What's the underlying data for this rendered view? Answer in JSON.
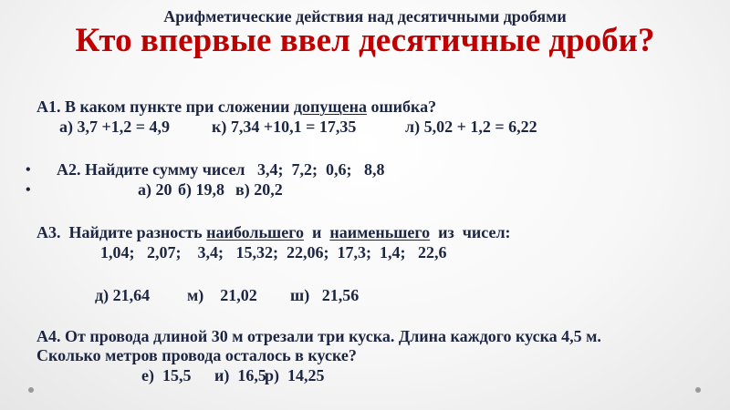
{
  "subtitle": "Арифметические действия над десятичными дробями",
  "title": "Кто впервые ввел десятичные дроби?",
  "a1": {
    "q_before": "А1. В каком пункте при сложении ",
    "q_under": "допущена",
    "q_after": " ошибка?",
    "options": [
      "а) 3,7 +1,2 = 4,9",
      "к) 7,34 +10,1 = 17,35",
      "л) 5,02 + 1,2 = 6,22"
    ]
  },
  "a2": {
    "bullet": "•",
    "question": "А2. Найдите сумму чисел   3,4;  7,2;  0,6;   8,8",
    "options": [
      "а) 20",
      "б) 19,8",
      "в) 20,2"
    ]
  },
  "a3": {
    "q_start": "А3.  Найдите разность ",
    "q_under1": "наибольшего",
    "q_mid": "  и  ",
    "q_under2": "наименьшего",
    "q_end": "  из  чисел:",
    "numbers": "1,04;   2,07;    3,4;   15,32;  22,06;  17,3;  1,4;   22,6",
    "options": [
      "д) 21,64",
      "м)    21,02",
      "ш)   21,56"
    ]
  },
  "a4": {
    "line1": "А4. От провода длиной 30 м отрезали три куска. Длина каждого куска 4,5 м.",
    "line2": "Сколько метров провода осталось в куске?",
    "options": [
      "е)  15,5",
      "и)  16,5",
      "р)  14,25"
    ]
  }
}
